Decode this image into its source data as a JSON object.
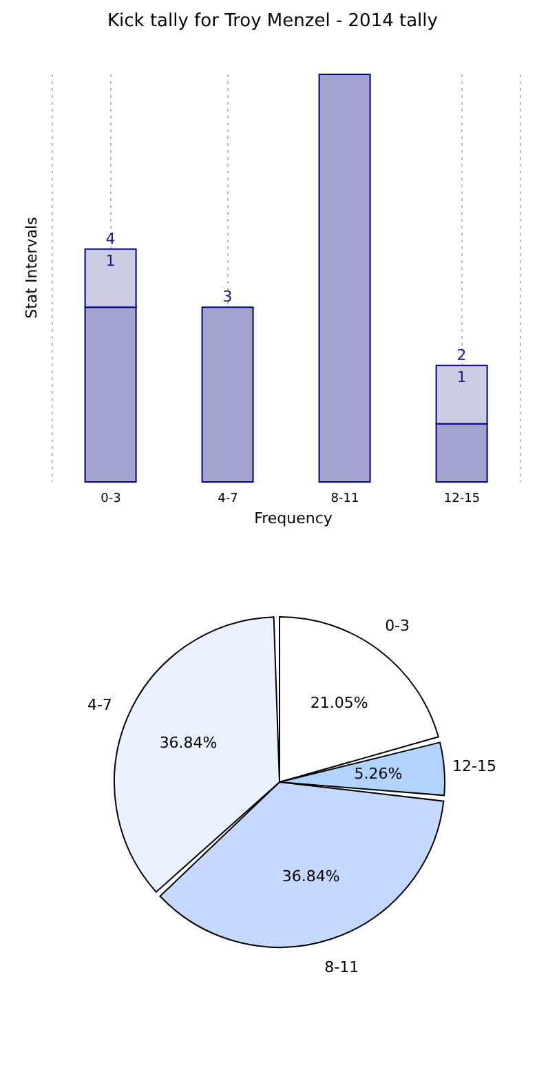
{
  "chart_data": [
    {
      "type": "bar",
      "title": "Kick tally for Troy Menzel - 2014 tally",
      "xlabel": "Frequency",
      "ylabel": "Stat Intervals",
      "categories": [
        "0-3",
        "4-7",
        "8-11",
        "12-15"
      ],
      "stacked": true,
      "grid": "x",
      "series": [
        {
          "color": "#a3a3cf",
          "values": [
            3,
            3,
            7,
            1
          ]
        },
        {
          "color": "#cbcbe3",
          "values": [
            1,
            null,
            null,
            1
          ],
          "value_labels": [
            "1",
            null,
            null,
            "1"
          ]
        }
      ],
      "totals": [
        "4",
        "3",
        null,
        "2"
      ]
    },
    {
      "type": "pie",
      "categories": [
        "0-3",
        "12-15",
        "8-11",
        "4-7"
      ],
      "values": [
        21.05,
        5.26,
        36.84,
        36.84
      ],
      "colors": [
        "#ffffff",
        "#b0d4ff",
        "#c5d8ff",
        "#eaf1ff"
      ],
      "value_labels": [
        "21.05%",
        "5.26%",
        "36.84%",
        "36.84%"
      ]
    }
  ]
}
